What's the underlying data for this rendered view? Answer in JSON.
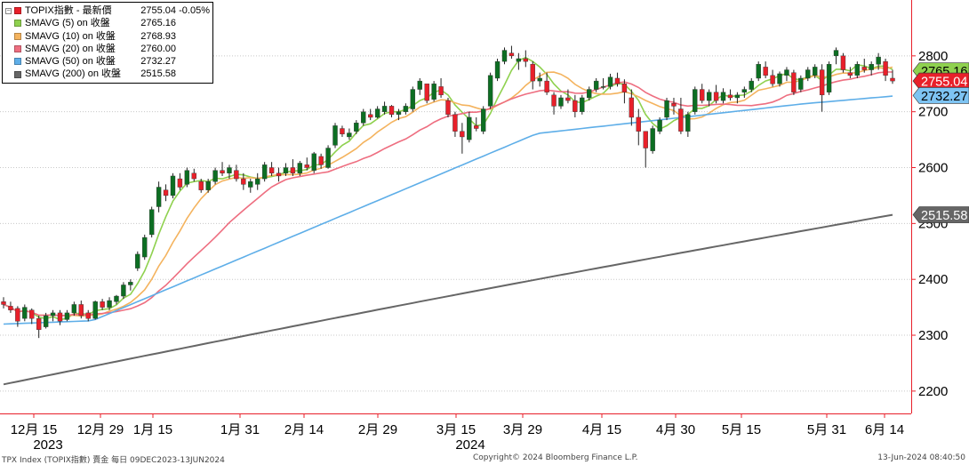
{
  "chart_data": {
    "type": "candlestick",
    "title": "TOPIX指數 - 最新價",
    "x_labels": [
      {
        "label": "12月 15",
        "year": "2023"
      },
      {
        "label": "12月 29"
      },
      {
        "label": "1月 15"
      },
      {
        "label": "1月 31"
      },
      {
        "label": "2月 14"
      },
      {
        "label": "2月 29"
      },
      {
        "label": "3月 15",
        "year": "2024"
      },
      {
        "label": "3月 29"
      },
      {
        "label": "4月 15"
      },
      {
        "label": "4月 30"
      },
      {
        "label": "5月 15"
      },
      {
        "label": "5月 31"
      },
      {
        "label": "6月 14"
      }
    ],
    "y_ticks": [
      2200,
      2300,
      2400,
      2500,
      2600,
      2700,
      2800
    ],
    "ylim": [
      2160,
      2900
    ],
    "legend": [
      {
        "name": "TOPIX指數 - 最新價",
        "value": "2755.04",
        "change": "-0.05%",
        "color": "#e8202a"
      },
      {
        "name": "SMAVG (5)  on 收盤",
        "value": "2765.16",
        "color": "#8fd14f"
      },
      {
        "name": "SMAVG (10)  on 收盤",
        "value": "2768.93",
        "color": "#f4b35e"
      },
      {
        "name": "SMAVG (20)  on 收盤",
        "value": "2760.00",
        "color": "#ee6e80"
      },
      {
        "name": "SMAVG (50)  on 收盤",
        "value": "2732.27",
        "color": "#5eaee8"
      },
      {
        "name": "SMAVG (200)  on 收盤",
        "value": "2515.58",
        "color": "#666666"
      }
    ],
    "right_labels": [
      {
        "text": "2765.16",
        "value": 2765.16,
        "color": "#8fd14f",
        "text_color": "#000000"
      },
      {
        "text": "2755.04",
        "value": 2755.04,
        "color": "#e8202a",
        "text_color": "#ffffff"
      },
      {
        "text": "2732.27",
        "value": 2732.27,
        "color": "#7ec4f3",
        "text_color": "#000000"
      },
      {
        "text": "2515.58",
        "value": 2515.58,
        "color": "#666666",
        "text_color": "#ffffff"
      }
    ],
    "candles": [
      [
        2360,
        2368,
        2348,
        2355
      ],
      [
        2352,
        2360,
        2340,
        2345
      ],
      [
        2348,
        2352,
        2315,
        2325
      ],
      [
        2330,
        2355,
        2325,
        2350
      ],
      [
        2345,
        2348,
        2320,
        2330
      ],
      [
        2330,
        2335,
        2295,
        2310
      ],
      [
        2315,
        2340,
        2312,
        2335
      ],
      [
        2335,
        2345,
        2325,
        2340
      ],
      [
        2340,
        2345,
        2318,
        2325
      ],
      [
        2328,
        2345,
        2325,
        2340
      ],
      [
        2340,
        2360,
        2335,
        2355
      ],
      [
        2355,
        2362,
        2330,
        2335
      ],
      [
        2340,
        2345,
        2325,
        2330
      ],
      [
        2330,
        2362,
        2328,
        2360
      ],
      [
        2360,
        2365,
        2345,
        2350
      ],
      [
        2350,
        2368,
        2345,
        2362
      ],
      [
        2360,
        2372,
        2355,
        2370
      ],
      [
        2370,
        2395,
        2365,
        2390
      ],
      [
        2390,
        2400,
        2380,
        2395
      ],
      [
        2420,
        2450,
        2415,
        2445
      ],
      [
        2440,
        2480,
        2435,
        2475
      ],
      [
        2480,
        2530,
        2475,
        2525
      ],
      [
        2530,
        2575,
        2520,
        2565
      ],
      [
        2560,
        2570,
        2540,
        2550
      ],
      [
        2550,
        2590,
        2545,
        2585
      ],
      [
        2580,
        2590,
        2560,
        2565
      ],
      [
        2570,
        2600,
        2565,
        2595
      ],
      [
        2590,
        2598,
        2575,
        2580
      ],
      [
        2575,
        2580,
        2555,
        2560
      ],
      [
        2560,
        2580,
        2555,
        2575
      ],
      [
        2575,
        2600,
        2570,
        2595
      ],
      [
        2595,
        2610,
        2585,
        2590
      ],
      [
        2590,
        2605,
        2580,
        2600
      ],
      [
        2595,
        2605,
        2575,
        2580
      ],
      [
        2580,
        2590,
        2560,
        2570
      ],
      [
        2565,
        2580,
        2555,
        2575
      ],
      [
        2570,
        2590,
        2560,
        2580
      ],
      [
        2580,
        2610,
        2575,
        2605
      ],
      [
        2600,
        2610,
        2585,
        2590
      ],
      [
        2590,
        2600,
        2575,
        2585
      ],
      [
        2590,
        2608,
        2585,
        2600
      ],
      [
        2600,
        2615,
        2585,
        2590
      ],
      [
        2590,
        2612,
        2585,
        2608
      ],
      [
        2605,
        2618,
        2595,
        2600
      ],
      [
        2595,
        2628,
        2590,
        2625
      ],
      [
        2620,
        2625,
        2598,
        2605
      ],
      [
        2600,
        2640,
        2598,
        2635
      ],
      [
        2640,
        2680,
        2635,
        2675
      ],
      [
        2670,
        2675,
        2655,
        2660
      ],
      [
        2655,
        2670,
        2650,
        2662
      ],
      [
        2665,
        2685,
        2660,
        2680
      ],
      [
        2680,
        2705,
        2675,
        2700
      ],
      [
        2695,
        2705,
        2685,
        2690
      ],
      [
        2690,
        2710,
        2688,
        2705
      ],
      [
        2700,
        2718,
        2695,
        2710
      ],
      [
        2710,
        2712,
        2690,
        2695
      ],
      [
        2695,
        2705,
        2685,
        2700
      ],
      [
        2700,
        2715,
        2695,
        2710
      ],
      [
        2705,
        2745,
        2700,
        2740
      ],
      [
        2740,
        2760,
        2730,
        2755
      ],
      [
        2750,
        2745,
        2715,
        2720
      ],
      [
        2722,
        2755,
        2718,
        2750
      ],
      [
        2745,
        2760,
        2725,
        2730
      ],
      [
        2720,
        2725,
        2690,
        2695
      ],
      [
        2695,
        2700,
        2655,
        2665
      ],
      [
        2665,
        2680,
        2625,
        2655
      ],
      [
        2650,
        2700,
        2645,
        2690
      ],
      [
        2675,
        2690,
        2665,
        2670
      ],
      [
        2665,
        2710,
        2660,
        2705
      ],
      [
        2710,
        2770,
        2705,
        2765
      ],
      [
        2760,
        2795,
        2755,
        2790
      ],
      [
        2790,
        2815,
        2785,
        2810
      ],
      [
        2805,
        2818,
        2795,
        2800
      ],
      [
        2790,
        2805,
        2775,
        2795
      ],
      [
        2795,
        2810,
        2780,
        2790
      ],
      [
        2785,
        2790,
        2740,
        2755
      ],
      [
        2755,
        2770,
        2745,
        2760
      ],
      [
        2755,
        2770,
        2730,
        2735
      ],
      [
        2730,
        2735,
        2695,
        2710
      ],
      [
        2710,
        2730,
        2705,
        2725
      ],
      [
        2725,
        2740,
        2715,
        2720
      ],
      [
        2720,
        2730,
        2690,
        2700
      ],
      [
        2700,
        2730,
        2695,
        2725
      ],
      [
        2725,
        2745,
        2720,
        2740
      ],
      [
        2740,
        2760,
        2735,
        2755
      ],
      [
        2745,
        2760,
        2740,
        2745
      ],
      [
        2745,
        2768,
        2740,
        2762
      ],
      [
        2760,
        2770,
        2745,
        2750
      ],
      [
        2750,
        2758,
        2715,
        2735
      ],
      [
        2725,
        2740,
        2675,
        2690
      ],
      [
        2690,
        2705,
        2640,
        2665
      ],
      [
        2665,
        2665,
        2600,
        2635
      ],
      [
        2630,
        2675,
        2625,
        2670
      ],
      [
        2665,
        2690,
        2660,
        2685
      ],
      [
        2690,
        2725,
        2685,
        2720
      ],
      [
        2715,
        2725,
        2695,
        2710
      ],
      [
        2705,
        2725,
        2660,
        2665
      ],
      [
        2665,
        2700,
        2655,
        2695
      ],
      [
        2700,
        2745,
        2695,
        2740
      ],
      [
        2740,
        2750,
        2715,
        2720
      ],
      [
        2720,
        2740,
        2710,
        2735
      ],
      [
        2735,
        2748,
        2715,
        2720
      ],
      [
        2720,
        2742,
        2715,
        2735
      ],
      [
        2730,
        2740,
        2720,
        2725
      ],
      [
        2725,
        2735,
        2715,
        2730
      ],
      [
        2735,
        2745,
        2725,
        2740
      ],
      [
        2740,
        2760,
        2735,
        2755
      ],
      [
        2760,
        2790,
        2755,
        2785
      ],
      [
        2780,
        2790,
        2760,
        2765
      ],
      [
        2765,
        2775,
        2745,
        2750
      ],
      [
        2750,
        2772,
        2745,
        2768
      ],
      [
        2765,
        2780,
        2755,
        2775
      ],
      [
        2770,
        2775,
        2730,
        2735
      ],
      [
        2740,
        2765,
        2735,
        2760
      ],
      [
        2760,
        2780,
        2755,
        2775
      ],
      [
        2765,
        2785,
        2760,
        2780
      ],
      [
        2775,
        2785,
        2700,
        2730
      ],
      [
        2735,
        2790,
        2730,
        2785
      ],
      [
        2800,
        2815,
        2785,
        2810
      ],
      [
        2800,
        2805,
        2770,
        2775
      ],
      [
        2770,
        2780,
        2760,
        2765
      ],
      [
        2765,
        2790,
        2760,
        2785
      ],
      [
        2780,
        2795,
        2770,
        2775
      ],
      [
        2775,
        2790,
        2765,
        2785
      ],
      [
        2785,
        2805,
        2775,
        2798
      ],
      [
        2790,
        2795,
        2755,
        2765
      ],
      [
        2760,
        2775,
        2750,
        2755
      ]
    ]
  },
  "footer": {
    "left": "TPX Index (TOPIX指數) 賣金  每日 09DEC2023-13JUN2024",
    "center": "Copyright© 2024 Bloomberg Finance L.P.",
    "right": "13-Jun-2024 08:40:50"
  }
}
